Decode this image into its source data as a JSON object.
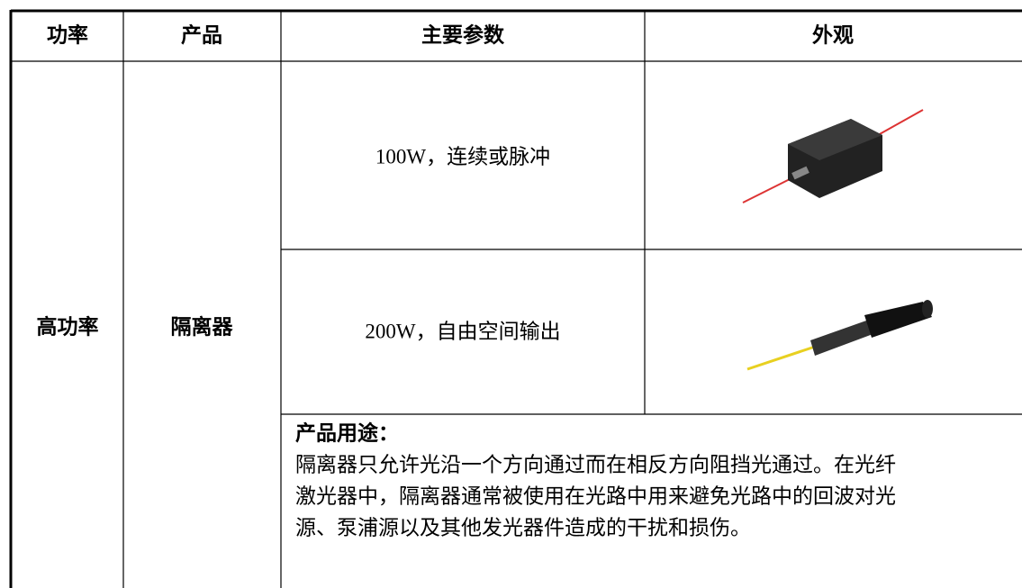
{
  "table": {
    "header": [
      "功率",
      "产品",
      "主要参数",
      "外观"
    ],
    "power": "高功率",
    "product": "隔离器",
    "params": [
      "100W，连续或脉冲",
      "200W，自由空间输出"
    ],
    "usage": {
      "title": "产品用途：",
      "lines": [
        "隔离器只允许光沿一个方向通过而在相反方向阻挡光通过。在光纤",
        "激光器中，隔离器通常被使用在光路中用来避免光路中的回波对光",
        "源、泵浦源以及其他发光器件造成的干扰和损伤。"
      ]
    }
  }
}
